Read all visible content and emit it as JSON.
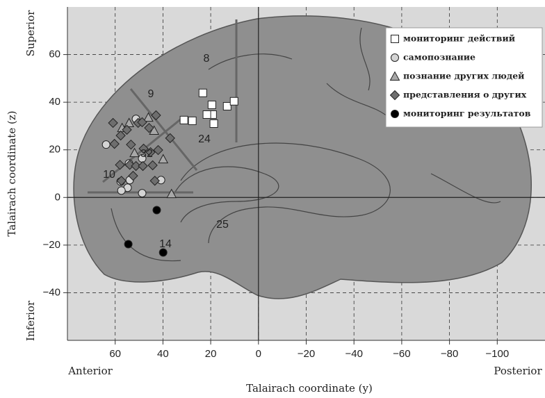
{
  "chart_data": {
    "type": "scatter",
    "x_label": "Talairach coordinate (y)",
    "y_label": "Talairach coordinate (z)",
    "xlim": [
      80,
      -120
    ],
    "ylim": [
      -60,
      80
    ],
    "xticks": [
      60,
      40,
      20,
      0,
      {
        "value": -20,
        "label": "−20"
      },
      {
        "value": -40,
        "label": "−40"
      },
      {
        "value": -60,
        "label": "−60"
      },
      {
        "value": -80,
        "label": "−80"
      },
      {
        "value": -100,
        "label": "−100"
      }
    ],
    "yticks": [
      {
        "value": -40,
        "label": "−40"
      },
      {
        "value": -20,
        "label": "−20"
      },
      0,
      20,
      40,
      60
    ],
    "grid": true,
    "direction_labels": {
      "anterior": "Anterior",
      "posterior": "Posterior",
      "superior": "Superior",
      "inferior": "Inferior"
    },
    "areas": [
      "8",
      "9",
      "24",
      "32",
      "10",
      "25",
      "14"
    ],
    "legend": "upper right",
    "series": [
      {
        "name": "мониторинг действий",
        "marker": "square",
        "color": "#ffffff",
        "x": [
          23.3,
          19.5,
          13.1,
          10.2,
          19.2,
          21.6,
          18.7,
          31.2,
          27.7
        ],
        "values": [
          43.9,
          38.9,
          38.3,
          40.4,
          34.8,
          34.8,
          31.0,
          32.5,
          32.2
        ]
      },
      {
        "name": "самопознание",
        "marker": "circle",
        "color": "#d4d4d4",
        "x": [
          63.8,
          51.3,
          48.7,
          54.2,
          53.9,
          40.8,
          54.8,
          57.4,
          48.7,
          57.7
        ],
        "values": [
          22.2,
          33.0,
          16.4,
          14.3,
          7.3,
          7.3,
          4.1,
          2.9,
          1.8,
          6.7
        ]
      },
      {
        "name": "познание других людей",
        "marker": "triangle",
        "color": "#a8a8a8",
        "x": [
          57.1,
          54.2,
          46.1,
          51.9,
          43.7,
          39.9,
          36.4
        ],
        "values": [
          29.2,
          31.3,
          33.6,
          18.7,
          28.1,
          16.1,
          1.5
        ]
      },
      {
        "name": "представления о других",
        "marker": "diamond",
        "color": "#6e6e6e",
        "x": [
          60.9,
          57.7,
          55.1,
          50.4,
          48.7,
          45.8,
          42.9,
          60.3,
          53.4,
          48.1,
          45.2,
          42.0,
          37.0,
          58.0,
          53.9,
          51.3,
          48.4,
          44.3,
          57.4,
          43.4,
          52.5
        ],
        "values": [
          31.3,
          26.0,
          28.4,
          31.3,
          31.6,
          29.2,
          34.5,
          22.5,
          22.2,
          20.5,
          19.0,
          19.9,
          24.9,
          13.7,
          13.7,
          13.2,
          13.2,
          13.5,
          7.0,
          7.0,
          9.1
        ]
      },
      {
        "name": "мониторинг результатов",
        "marker": "circle",
        "color": "#000000",
        "x": [
          42.6,
          54.5,
          39.9
        ],
        "values": [
          -5.3,
          -19.6,
          -23.1
        ]
      }
    ]
  }
}
